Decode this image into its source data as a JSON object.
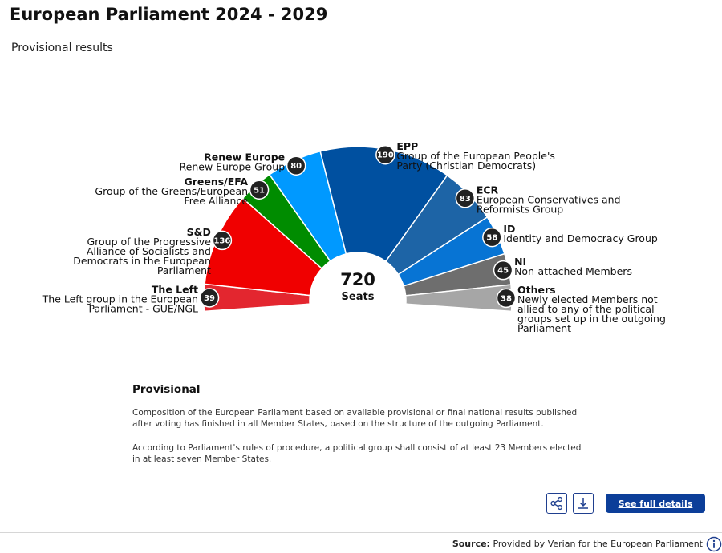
{
  "header": {
    "title": "European Parliament 2024 - 2029",
    "subtitle": "Provisional results"
  },
  "chart_data": {
    "type": "pie",
    "variant": "hemicycle",
    "title": "European Parliament 2024 - 2029",
    "subtitle": "Provisional results",
    "total": 720,
    "total_label": "Seats",
    "groups": [
      {
        "short": "The Left",
        "name": "The Left group in the European Parliament - GUE/NGL",
        "seats": 39,
        "color": "#e3262f"
      },
      {
        "short": "S&D",
        "name": "Group of the Progressive Alliance of Socialists and Democrats in the European Parliament",
        "seats": 136,
        "color": "#f00000"
      },
      {
        "short": "Greens/EFA",
        "name": "Group of the Greens/European Free Alliance",
        "seats": 51,
        "color": "#008c00"
      },
      {
        "short": "Renew Europe",
        "name": "Renew Europe Group",
        "seats": 80,
        "color": "#0099ff"
      },
      {
        "short": "EPP",
        "name": "Group of the European People's Party (Christian Democrats)",
        "seats": 190,
        "color": "#0050a0"
      },
      {
        "short": "ECR",
        "name": "European Conservatives and Reformists Group",
        "seats": 83,
        "color": "#1d64a6"
      },
      {
        "short": "ID",
        "name": "Identity and Democracy Group",
        "seats": 58,
        "color": "#0774d4"
      },
      {
        "short": "NI",
        "name": "Non-attached Members",
        "seats": 45,
        "color": "#6e6e6e"
      },
      {
        "short": "Others",
        "name": "Newly elected Members not allied to any of the political groups set up in the outgoing Parliament",
        "seats": 38,
        "color": "#a6a6a6"
      }
    ]
  },
  "info": {
    "heading": "Provisional",
    "para1": "Composition of the European Parliament based on available provisional or final national results published after voting has finished in all Member States, based on the structure of the outgoing Parliament.",
    "para2": "According to Parliament's rules of procedure, a political group shall consist of at least 23 Members elected in at least seven Member States."
  },
  "actions": {
    "share_icon": "share-icon",
    "download_icon": "download-icon",
    "details_label": "See full details"
  },
  "footer": {
    "source_label": "Source:",
    "source_text": "Provided by Verian for the European Parliament",
    "info_icon": "info-icon"
  }
}
